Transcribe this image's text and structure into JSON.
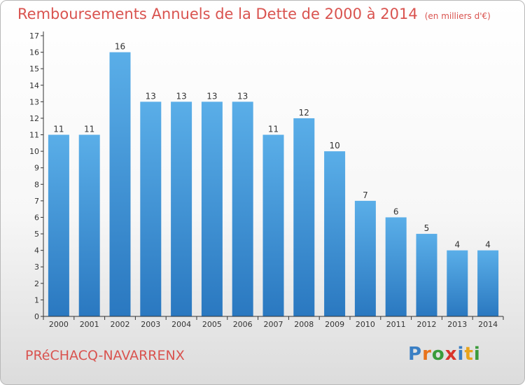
{
  "title": "Remboursements Annuels de la Dette de 2000 à 2014",
  "subtitle": "(en milliers d'€)",
  "commune": "PRéCHACQ-NAVARRENX",
  "logo": {
    "text": "Proxiti",
    "letters": [
      {
        "ch": "P",
        "color": "#3a7fc4"
      },
      {
        "ch": "r",
        "color": "#e8731c"
      },
      {
        "ch": "o",
        "color": "#3a9b3a"
      },
      {
        "ch": "x",
        "color": "#d9342b"
      },
      {
        "ch": "i",
        "color": "#3a7fc4"
      },
      {
        "ch": "t",
        "color": "#e8a41c"
      },
      {
        "ch": "i",
        "color": "#3a9b3a"
      }
    ]
  },
  "colors": {
    "title": "#d9534f",
    "bar_top": "#5aaee8",
    "bar_bottom": "#2a78c0",
    "axis": "#333333",
    "text": "#333333"
  },
  "chart_data": {
    "type": "bar",
    "categories": [
      "2000",
      "2001",
      "2002",
      "2003",
      "2004",
      "2005",
      "2006",
      "2007",
      "2008",
      "2009",
      "2010",
      "2011",
      "2012",
      "2013",
      "2014"
    ],
    "values": [
      11,
      11,
      16,
      13,
      13,
      13,
      13,
      11,
      12,
      10,
      7,
      6,
      5,
      4,
      4
    ],
    "ylim": [
      0,
      17
    ],
    "yticks": [
      0,
      1,
      2,
      3,
      4,
      5,
      6,
      7,
      8,
      9,
      10,
      11,
      12,
      13,
      14,
      15,
      16,
      17
    ],
    "title": "Remboursements Annuels de la Dette de 2000 à 2014",
    "xlabel": "",
    "ylabel": "",
    "grid": false,
    "data_labels": true
  }
}
